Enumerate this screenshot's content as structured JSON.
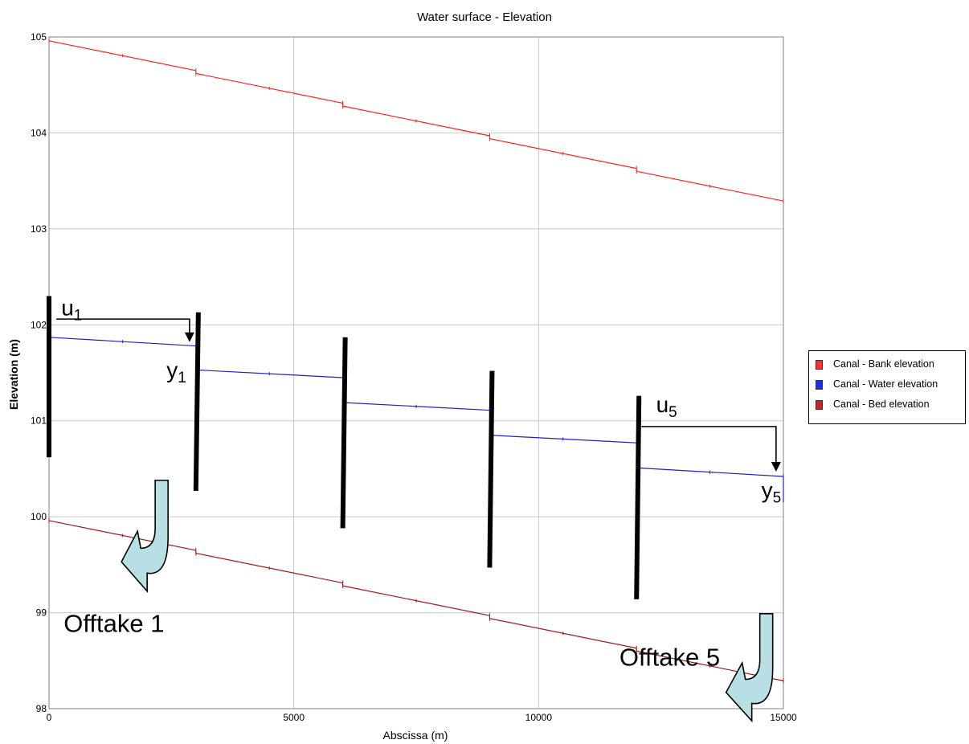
{
  "chart_data": {
    "type": "line",
    "title": "Water surface - Elevation",
    "xlabel": "Abscissa (m)",
    "ylabel": "Elevation (m)",
    "xlim": [
      0,
      15000
    ],
    "ylim": [
      98,
      105
    ],
    "x_ticks": [
      {
        "value": 0,
        "label": "0"
      },
      {
        "value": 5000,
        "label": "5000"
      },
      {
        "value": 10000,
        "label": "10000"
      },
      {
        "value": 15000,
        "label": "15000"
      }
    ],
    "y_ticks": [
      {
        "value": 98,
        "label": "98"
      },
      {
        "value": 99,
        "label": "99"
      },
      {
        "value": 100,
        "label": "100"
      },
      {
        "value": 101,
        "label": "101"
      },
      {
        "value": 102,
        "label": "102"
      },
      {
        "value": 103,
        "label": "103"
      },
      {
        "value": 104,
        "label": "104"
      },
      {
        "value": 105,
        "label": "105"
      }
    ],
    "grid": true,
    "legend_position": "right",
    "series": [
      {
        "name": "Canal - Bank elevation",
        "color": "#ff2020",
        "swatch": "#ff3030",
        "segments": [
          [
            [
              0,
              104.96
            ],
            [
              3000,
              104.65
            ]
          ],
          [
            [
              3000,
              104.62
            ],
            [
              6000,
              104.31
            ]
          ],
          [
            [
              6000,
              104.28
            ],
            [
              9000,
              103.97
            ]
          ],
          [
            [
              9000,
              103.94
            ],
            [
              12000,
              103.63
            ]
          ],
          [
            [
              12000,
              103.6
            ],
            [
              15000,
              103.29
            ]
          ]
        ]
      },
      {
        "name": "Canal - Water elevation",
        "color": "#2020c0",
        "swatch": "#2030e0",
        "segments": [
          [
            [
              0,
              101.87
            ],
            [
              3000,
              101.78
            ]
          ],
          [
            [
              3000,
              101.53
            ],
            [
              6000,
              101.45
            ]
          ],
          [
            [
              6000,
              101.19
            ],
            [
              9000,
              101.11
            ]
          ],
          [
            [
              9000,
              100.85
            ],
            [
              12000,
              100.77
            ]
          ],
          [
            [
              12000,
              100.51
            ],
            [
              15000,
              100.42
            ]
          ]
        ]
      },
      {
        "name": "Canal - Bed elevation",
        "color": "#a01818",
        "swatch": "#c02828",
        "segments": [
          [
            [
              0,
              99.96
            ],
            [
              3000,
              99.65
            ]
          ],
          [
            [
              3000,
              99.62
            ],
            [
              6000,
              99.31
            ]
          ],
          [
            [
              6000,
              99.28
            ],
            [
              9000,
              98.97
            ]
          ],
          [
            [
              9000,
              98.94
            ],
            [
              12000,
              98.63
            ]
          ],
          [
            [
              12000,
              98.6
            ],
            [
              15000,
              98.29
            ]
          ]
        ]
      }
    ],
    "gates": [
      {
        "x1": 0,
        "y1": 102.3,
        "x2": 0,
        "y2": 100.62
      },
      {
        "x1": 3050,
        "y1": 102.13,
        "x2": 3000,
        "y2": 100.27
      },
      {
        "x1": 6050,
        "y1": 101.87,
        "x2": 6000,
        "y2": 99.88
      },
      {
        "x1": 9050,
        "y1": 101.52,
        "x2": 9000,
        "y2": 99.47
      },
      {
        "x1": 12050,
        "y1": 101.26,
        "x2": 12000,
        "y2": 99.14
      }
    ],
    "annotations": {
      "u1": {
        "letter": "u",
        "sub": "1",
        "x": 250,
        "y": 102.1
      },
      "y1": {
        "letter": "y",
        "sub": "1",
        "x": 2400,
        "y": 101.45
      },
      "u5": {
        "letter": "u",
        "sub": "5",
        "x": 12400,
        "y": 101.09
      },
      "y5": {
        "letter": "y",
        "sub": "5",
        "x": 14550,
        "y": 100.2
      },
      "offtake1": {
        "label": "Offtake 1",
        "x": 300,
        "y": 98.8
      },
      "offtake5": {
        "label": "Offtake 5",
        "x": 11650,
        "y": 98.45
      }
    },
    "control_arrows": [
      {
        "from_x": 150,
        "from_y": 102.06,
        "to_x": 2870,
        "to_y": 101.82
      },
      {
        "from_x": 12100,
        "from_y": 100.94,
        "to_x": 14850,
        "to_y": 100.47
      }
    ],
    "offtake_arrows": [
      {
        "x": 2300,
        "y_top": 100.38,
        "y_bottom": 99.2,
        "dir": "left"
      },
      {
        "x": 14650,
        "y_top": 98.99,
        "y_bottom": 97.85,
        "dir": "left"
      }
    ]
  }
}
